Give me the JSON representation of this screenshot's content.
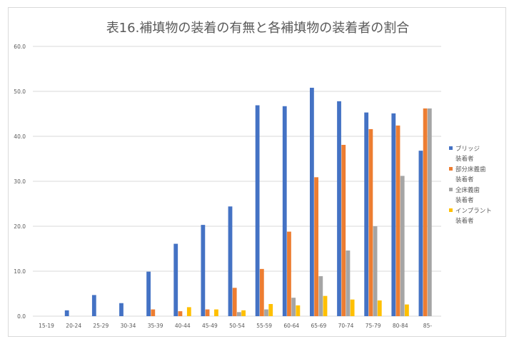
{
  "chart_data": {
    "type": "bar",
    "title": "表16.補填物の装着の有無と各補填物の装着者の割合",
    "xlabel": "",
    "ylabel": "",
    "ylim": [
      0,
      60
    ],
    "yticks": [
      "0.0",
      "10.0",
      "20.0",
      "30.0",
      "40.0",
      "50.0",
      "60.0"
    ],
    "grid": true,
    "legend_position": "right",
    "categories": [
      "15-19",
      "20-24",
      "25-29",
      "30-34",
      "35-39",
      "40-44",
      "45-49",
      "50-54",
      "55-59",
      "60-64",
      "65-69",
      "70-74",
      "75-79",
      "80-84",
      "85-"
    ],
    "series": [
      {
        "name": "ブリッジ装着者",
        "legend_lines": [
          "ブリッジ",
          "装着者"
        ],
        "color": "#4472c4",
        "values": [
          0,
          1.3,
          4.7,
          2.9,
          9.9,
          16.1,
          20.3,
          24.4,
          46.9,
          46.7,
          50.8,
          47.8,
          45.3,
          45.1,
          36.8
        ]
      },
      {
        "name": "部分床義歯装着者",
        "legend_lines": [
          "部分床義歯",
          "装着者"
        ],
        "color": "#ed7d31",
        "values": [
          0,
          0,
          0,
          0,
          1.5,
          1.1,
          1.5,
          6.3,
          10.5,
          18.8,
          30.9,
          38.1,
          41.6,
          42.4,
          46.2
        ]
      },
      {
        "name": "全床義歯装着者",
        "legend_lines": [
          "全床義歯",
          "装着者"
        ],
        "color": "#a5a5a5",
        "values": [
          0,
          0,
          0,
          0,
          0,
          0,
          0,
          0.9,
          1.5,
          4.1,
          8.9,
          14.6,
          20.0,
          31.2,
          46.2
        ]
      },
      {
        "name": "インプラント装着者",
        "legend_lines": [
          "インプラント",
          "装着者"
        ],
        "color": "#ffc000",
        "values": [
          0,
          0,
          0,
          0,
          0,
          2.0,
          1.5,
          1.3,
          2.7,
          2.4,
          4.5,
          3.7,
          3.5,
          2.6,
          0
        ]
      }
    ]
  }
}
